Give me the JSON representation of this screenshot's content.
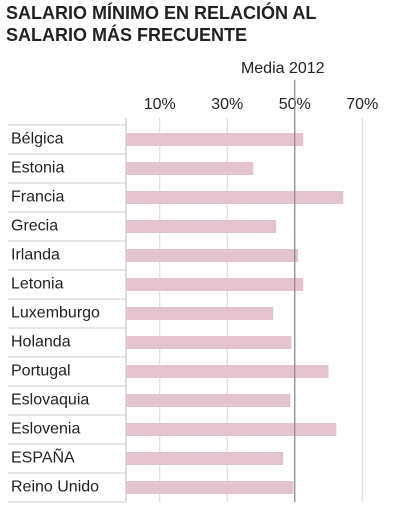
{
  "chart_data": {
    "type": "barh",
    "title": "SALARIO MÍNIMO EN RELACIÓN AL SALARIO MÁS FRECUENTE",
    "categories": [
      "Bélgica",
      "Estonia",
      "Francia",
      "Grecia",
      "Irlanda",
      "Letonia",
      "Luxemburgo",
      "Holanda",
      "Portugal",
      "Eslovaquia",
      "Eslovenia",
      "ESPAÑA",
      "Reino Unido"
    ],
    "values": [
      52.5,
      37.7,
      64.4,
      44.5,
      51,
      52.5,
      43.6,
      49,
      60,
      48.7,
      62.3,
      46.6,
      49.6
    ],
    "color": "#e4c3cf",
    "xlim": [
      0,
      80
    ],
    "xticks": [
      {
        "value": 10,
        "label": "10%"
      },
      {
        "value": 30,
        "label": "30%"
      },
      {
        "value": 50,
        "label": "50%"
      },
      {
        "value": 70,
        "label": "70%"
      }
    ],
    "grid": true,
    "reference_line": {
      "value": 50,
      "label": "Media 2012"
    }
  }
}
